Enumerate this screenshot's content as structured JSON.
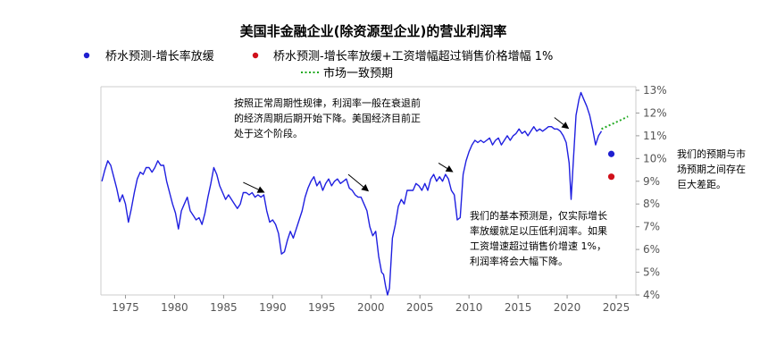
{
  "chart_data": {
    "type": "line",
    "title": "美国非金融企业(除资源型企业)的营业利润率",
    "xlabel": "",
    "ylabel": "",
    "xlim": [
      1972.5,
      2027
    ],
    "ylim": [
      4,
      13
    ],
    "x_ticks": [
      "1975",
      "1980",
      "1985",
      "1990",
      "1995",
      "2000",
      "2005",
      "2010",
      "2015",
      "2020",
      "2025"
    ],
    "y_ticks": [
      "4%",
      "5%",
      "6%",
      "7%",
      "8%",
      "9%",
      "10%",
      "11%",
      "12%",
      "13%"
    ],
    "y_axis_side": "right",
    "legend_placement": "top",
    "legend": [
      {
        "label": "桥水预测-增长率放缓",
        "marker": "dot",
        "color": "#1f1fd0"
      },
      {
        "label": "桥水预测-增长率放缓+工资增幅超过销售价格增幅 1%",
        "marker": "dot",
        "color": "#d0101a"
      },
      {
        "label": "市场一致预期",
        "marker": "dotted-line",
        "color": "#22aa22"
      }
    ],
    "series": [
      {
        "color": "#1f1fe0",
        "points": [
          [
            1972.6,
            9.0
          ],
          [
            1972.9,
            9.5
          ],
          [
            1973.2,
            9.9
          ],
          [
            1973.5,
            9.7
          ],
          [
            1973.8,
            9.2
          ],
          [
            1974.1,
            8.7
          ],
          [
            1974.4,
            8.1
          ],
          [
            1974.7,
            8.4
          ],
          [
            1975.0,
            8.0
          ],
          [
            1975.3,
            7.2
          ],
          [
            1975.6,
            7.8
          ],
          [
            1975.9,
            8.5
          ],
          [
            1976.2,
            9.1
          ],
          [
            1976.5,
            9.4
          ],
          [
            1976.8,
            9.3
          ],
          [
            1977.1,
            9.6
          ],
          [
            1977.4,
            9.6
          ],
          [
            1977.7,
            9.4
          ],
          [
            1978.0,
            9.6
          ],
          [
            1978.3,
            9.9
          ],
          [
            1978.6,
            9.7
          ],
          [
            1978.9,
            9.7
          ],
          [
            1979.2,
            9.0
          ],
          [
            1979.5,
            8.5
          ],
          [
            1979.8,
            8.0
          ],
          [
            1980.1,
            7.6
          ],
          [
            1980.4,
            6.9
          ],
          [
            1980.7,
            7.7
          ],
          [
            1981.0,
            8.0
          ],
          [
            1981.3,
            8.3
          ],
          [
            1981.6,
            7.7
          ],
          [
            1981.9,
            7.5
          ],
          [
            1982.2,
            7.3
          ],
          [
            1982.5,
            7.4
          ],
          [
            1982.8,
            7.1
          ],
          [
            1983.1,
            7.6
          ],
          [
            1983.4,
            8.3
          ],
          [
            1983.7,
            8.9
          ],
          [
            1984.0,
            9.6
          ],
          [
            1984.3,
            9.3
          ],
          [
            1984.6,
            8.8
          ],
          [
            1984.9,
            8.5
          ],
          [
            1985.2,
            8.2
          ],
          [
            1985.5,
            8.4
          ],
          [
            1985.8,
            8.2
          ],
          [
            1986.1,
            8.0
          ],
          [
            1986.4,
            7.8
          ],
          [
            1986.7,
            8.0
          ],
          [
            1987.0,
            8.5
          ],
          [
            1987.3,
            8.5
          ],
          [
            1987.6,
            8.4
          ],
          [
            1987.9,
            8.5
          ],
          [
            1988.2,
            8.3
          ],
          [
            1988.5,
            8.4
          ],
          [
            1988.8,
            8.3
          ],
          [
            1989.1,
            8.4
          ],
          [
            1989.4,
            7.7
          ],
          [
            1989.7,
            7.2
          ],
          [
            1990.0,
            7.3
          ],
          [
            1990.3,
            7.1
          ],
          [
            1990.6,
            6.7
          ],
          [
            1990.9,
            5.8
          ],
          [
            1991.2,
            5.9
          ],
          [
            1991.5,
            6.4
          ],
          [
            1991.8,
            6.8
          ],
          [
            1992.1,
            6.5
          ],
          [
            1992.4,
            6.9
          ],
          [
            1992.7,
            7.3
          ],
          [
            1993.0,
            7.7
          ],
          [
            1993.3,
            8.3
          ],
          [
            1993.6,
            8.7
          ],
          [
            1993.9,
            9.0
          ],
          [
            1994.2,
            9.2
          ],
          [
            1994.5,
            8.8
          ],
          [
            1994.8,
            9.0
          ],
          [
            1995.1,
            8.6
          ],
          [
            1995.4,
            8.9
          ],
          [
            1995.7,
            9.1
          ],
          [
            1996.0,
            8.8
          ],
          [
            1996.3,
            9.0
          ],
          [
            1996.6,
            9.1
          ],
          [
            1996.9,
            8.9
          ],
          [
            1997.2,
            9.0
          ],
          [
            1997.5,
            9.1
          ],
          [
            1997.8,
            8.7
          ],
          [
            1998.1,
            8.6
          ],
          [
            1998.4,
            8.4
          ],
          [
            1998.7,
            8.3
          ],
          [
            1999.0,
            8.3
          ],
          [
            1999.3,
            8.0
          ],
          [
            1999.6,
            7.7
          ],
          [
            1999.9,
            7.0
          ],
          [
            2000.2,
            6.6
          ],
          [
            2000.5,
            6.8
          ],
          [
            2000.8,
            5.7
          ],
          [
            2001.1,
            5.0
          ],
          [
            2001.3,
            4.9
          ],
          [
            2001.5,
            4.4
          ],
          [
            2001.7,
            4.0
          ],
          [
            2001.9,
            4.3
          ],
          [
            2002.2,
            6.5
          ],
          [
            2002.5,
            7.1
          ],
          [
            2002.8,
            7.9
          ],
          [
            2003.1,
            8.2
          ],
          [
            2003.4,
            8.0
          ],
          [
            2003.7,
            8.6
          ],
          [
            2004.0,
            8.6
          ],
          [
            2004.3,
            8.6
          ],
          [
            2004.6,
            8.9
          ],
          [
            2004.9,
            8.8
          ],
          [
            2005.2,
            8.6
          ],
          [
            2005.5,
            8.9
          ],
          [
            2005.8,
            8.6
          ],
          [
            2006.1,
            9.1
          ],
          [
            2006.4,
            9.3
          ],
          [
            2006.7,
            9.0
          ],
          [
            2007.0,
            9.2
          ],
          [
            2007.3,
            9.0
          ],
          [
            2007.6,
            9.3
          ],
          [
            2007.9,
            9.1
          ],
          [
            2008.2,
            8.6
          ],
          [
            2008.5,
            8.4
          ],
          [
            2008.8,
            7.3
          ],
          [
            2009.1,
            7.4
          ],
          [
            2009.4,
            9.3
          ],
          [
            2009.7,
            9.9
          ],
          [
            2010.0,
            10.3
          ],
          [
            2010.3,
            10.6
          ],
          [
            2010.6,
            10.8
          ],
          [
            2010.9,
            10.7
          ],
          [
            2011.2,
            10.8
          ],
          [
            2011.5,
            10.7
          ],
          [
            2011.8,
            10.8
          ],
          [
            2012.1,
            10.9
          ],
          [
            2012.4,
            10.6
          ],
          [
            2012.7,
            10.8
          ],
          [
            2013.0,
            10.9
          ],
          [
            2013.3,
            10.6
          ],
          [
            2013.6,
            10.8
          ],
          [
            2013.9,
            11.0
          ],
          [
            2014.2,
            10.8
          ],
          [
            2014.5,
            11.0
          ],
          [
            2014.8,
            11.1
          ],
          [
            2015.1,
            11.3
          ],
          [
            2015.4,
            11.1
          ],
          [
            2015.7,
            11.2
          ],
          [
            2016.0,
            11.0
          ],
          [
            2016.3,
            11.2
          ],
          [
            2016.6,
            11.4
          ],
          [
            2016.9,
            11.2
          ],
          [
            2017.2,
            11.3
          ],
          [
            2017.5,
            11.2
          ],
          [
            2017.8,
            11.3
          ],
          [
            2018.1,
            11.4
          ],
          [
            2018.4,
            11.4
          ],
          [
            2018.7,
            11.3
          ],
          [
            2019.0,
            11.3
          ],
          [
            2019.3,
            11.2
          ],
          [
            2019.6,
            11.0
          ],
          [
            2019.9,
            10.7
          ],
          [
            2020.2,
            9.8
          ],
          [
            2020.4,
            8.2
          ],
          [
            2020.6,
            9.7
          ],
          [
            2020.9,
            11.9
          ],
          [
            2021.2,
            12.6
          ],
          [
            2021.4,
            12.9
          ],
          [
            2021.7,
            12.6
          ],
          [
            2022.0,
            12.3
          ],
          [
            2022.3,
            11.9
          ],
          [
            2022.6,
            11.3
          ],
          [
            2022.9,
            10.6
          ],
          [
            2023.2,
            11.0
          ],
          [
            2023.5,
            11.2
          ]
        ]
      },
      {
        "color": "#22aa22",
        "dotted": true,
        "points": [
          [
            2023.5,
            11.3
          ],
          [
            2024.5,
            11.5
          ],
          [
            2025.5,
            11.7
          ],
          [
            2026.2,
            11.85
          ]
        ]
      }
    ],
    "forecast_points": [
      {
        "x": 2024.5,
        "y": 10.2,
        "color": "#1f1fd0"
      },
      {
        "x": 2024.5,
        "y": 9.2,
        "color": "#d0101a"
      }
    ],
    "annotations": [
      {
        "lines": [
          "按照正常周期性规律，利润率一般在衰退前",
          "的经济周期后期开始下降。美国经济目前正",
          "处于这个阶段。"
        ]
      },
      {
        "lines": [
          "我们的基本预测是，仅实际增长",
          "率放缓就足以压低利润率。如果",
          "工资增速超过销售价增速 1%，",
          "利润率将会大幅下降。"
        ]
      },
      {
        "lines": [
          "我们的预期与市",
          "场预期之间存在",
          "巨大差距。"
        ]
      }
    ],
    "arrows": [
      {
        "from": [
          1987.0,
          8.95
        ],
        "to": [
          1989.2,
          8.5
        ]
      },
      {
        "from": [
          1997.7,
          9.3
        ],
        "to": [
          1999.8,
          8.55
        ]
      },
      {
        "from": [
          2006.9,
          9.8
        ],
        "to": [
          2008.4,
          9.4
        ]
      },
      {
        "from": [
          2018.7,
          11.8
        ],
        "to": [
          2020.2,
          11.3
        ]
      }
    ]
  }
}
